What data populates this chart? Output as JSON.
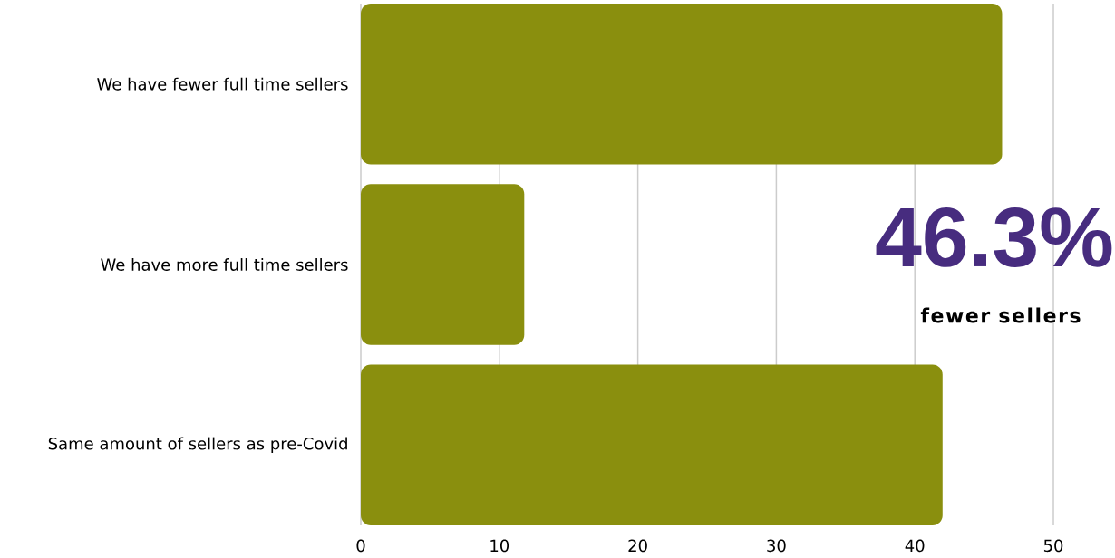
{
  "chart_data": {
    "type": "bar",
    "orientation": "horizontal",
    "categories": [
      "We have fewer full time sellers",
      "We have more full time sellers",
      "Same amount of sellers as pre-Covid"
    ],
    "values": [
      46.3,
      11.8,
      42
    ],
    "color": "#8a8f0e",
    "xlim": [
      0,
      50
    ],
    "xticks": [
      0,
      10,
      20,
      30,
      40,
      50
    ],
    "grid": "x",
    "annotations": [
      "46.3%",
      "fewer sellers"
    ]
  }
}
